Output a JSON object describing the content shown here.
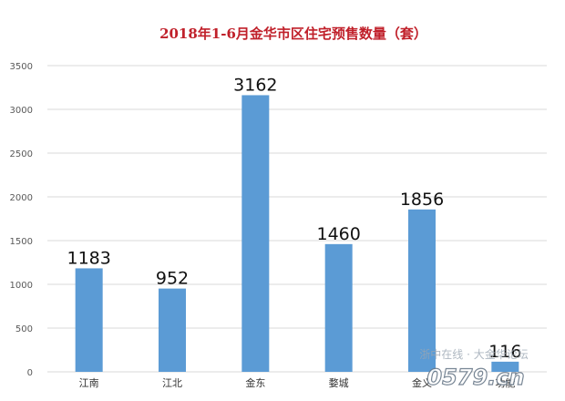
{
  "chart_data": {
    "type": "bar",
    "title": "2018年1-6月金华市区住宅预售数量（套）",
    "categories": [
      "江南",
      "江北",
      "金东",
      "婺城",
      "金义",
      "功能"
    ],
    "values": [
      1183,
      952,
      3162,
      1460,
      1856,
      116
    ],
    "data_labels": [
      "1183",
      "952",
      "3162",
      "1460",
      "1856",
      "116"
    ],
    "y_ticks": [
      "0",
      "500",
      "1000",
      "1500",
      "2000",
      "2500",
      "3000",
      "3500"
    ],
    "ylim": [
      0,
      3500
    ],
    "xlabel": "",
    "ylabel": "",
    "grid": true,
    "bar_color": "#5b9bd5",
    "title_color": "#c0202a"
  },
  "watermark": {
    "line1": "浙中在线 · 大金华论坛",
    "line2": "0579.cn"
  }
}
